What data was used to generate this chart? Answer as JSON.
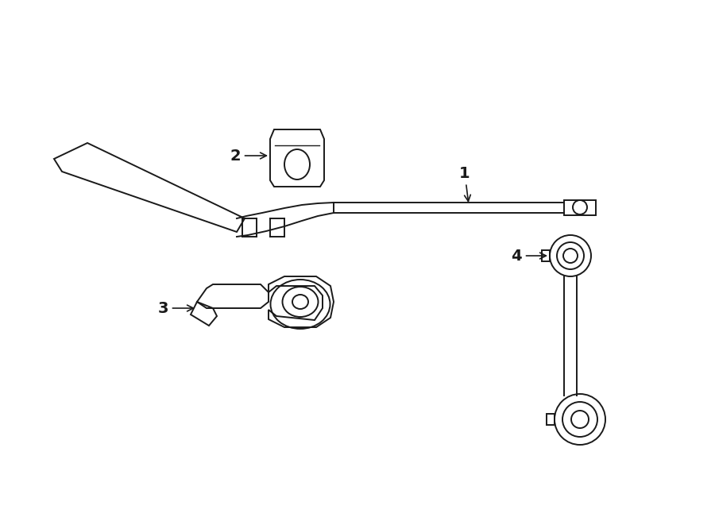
{
  "bg_color": "#ffffff",
  "line_color": "#1a1a1a",
  "lw": 1.4,
  "fig_width": 9.0,
  "fig_height": 6.61,
  "dpi": 100
}
